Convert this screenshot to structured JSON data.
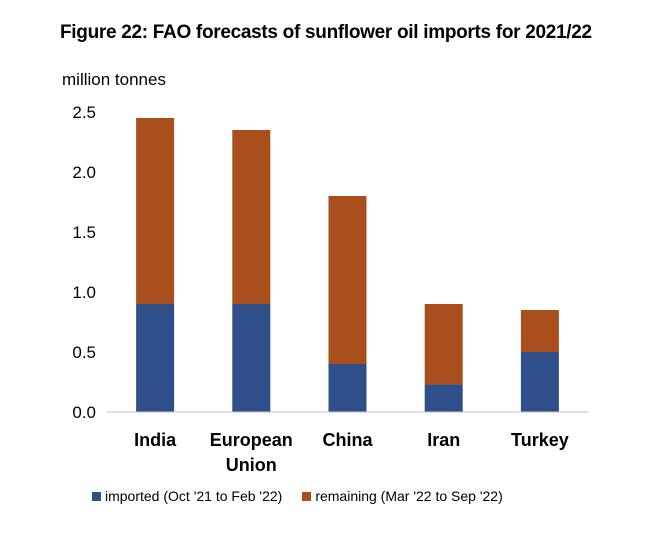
{
  "chart_data": {
    "type": "bar",
    "stacked": true,
    "title": "Figure 22: FAO forecasts of sunflower oil imports for 2021/22",
    "ylabel": "million tonnes",
    "xlabel": "",
    "ylim": [
      0,
      2.5
    ],
    "yticks": [
      "0.0",
      "0.5",
      "1.0",
      "1.5",
      "2.0",
      "2.5"
    ],
    "grid": false,
    "legend_position": "bottom",
    "categories": [
      [
        "India"
      ],
      [
        "European",
        "Union"
      ],
      [
        "China"
      ],
      [
        "Iran"
      ],
      [
        "Turkey"
      ]
    ],
    "series": [
      {
        "name": "imported (Oct '21 to Feb '22)",
        "color": "#2f4f8a",
        "values": [
          0.9,
          0.9,
          0.4,
          0.23,
          0.5
        ]
      },
      {
        "name": "remaining (Mar '22 to Sep '22)",
        "color": "#a94f1c",
        "values": [
          1.55,
          1.45,
          1.4,
          0.67,
          0.35
        ]
      }
    ]
  }
}
